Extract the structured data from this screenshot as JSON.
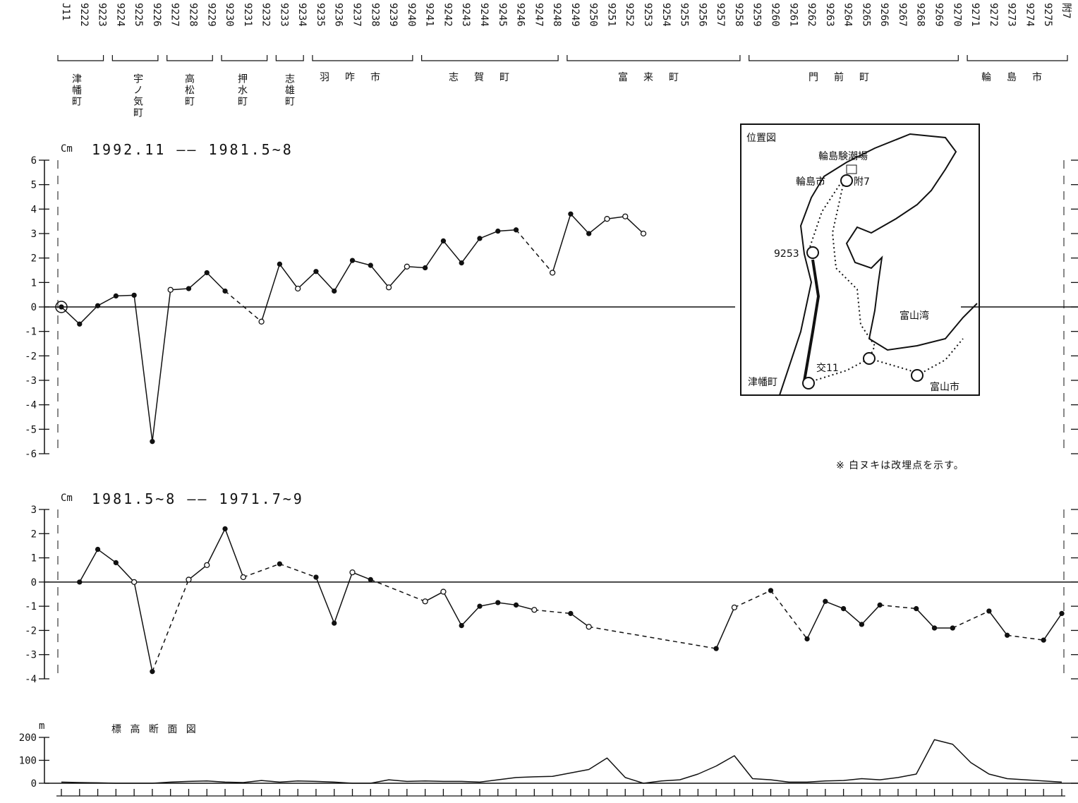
{
  "categories": [
    "J11",
    "9222",
    "9223",
    "9224",
    "9225",
    "9226",
    "9227",
    "9228",
    "9229",
    "9230",
    "9231",
    "9232",
    "9233",
    "9234",
    "9235",
    "9236",
    "9237",
    "9238",
    "9239",
    "9240",
    "9241",
    "9242",
    "9243",
    "9244",
    "9245",
    "9246",
    "9247",
    "9248",
    "9249",
    "9250",
    "9251",
    "9252",
    "9253",
    "9254",
    "9255",
    "9256",
    "9257",
    "9258",
    "9259",
    "9260",
    "9261",
    "9262",
    "9263",
    "9264",
    "9265",
    "9266",
    "9267",
    "9268",
    "9269",
    "9270",
    "9271",
    "9272",
    "9273",
    "9274",
    "9275",
    "附7"
  ],
  "municipalities": [
    "津幡町",
    "宇ノ気町",
    "高松町",
    "押水町",
    "志雄町",
    "羽咋市",
    "志賀町",
    "富来町",
    "門前町",
    "輪島市"
  ],
  "chart_data": [
    {
      "type": "line",
      "title": "1992.11 —— 1981.5~8",
      "y_unit": "Cm",
      "color": "#111",
      "values": [
        0,
        -0.7,
        0.05,
        0.45,
        0.48,
        -5.5,
        0.7,
        0.75,
        1.4,
        0.65,
        null,
        -0.6,
        1.75,
        0.75,
        1.45,
        0.65,
        1.9,
        1.7,
        0.8,
        1.65,
        1.6,
        2.7,
        1.8,
        2.8,
        3.1,
        3.15,
        null,
        1.4,
        3.8,
        3.0,
        3.6,
        3.7,
        3.0,
        null,
        null,
        null,
        null,
        null,
        null,
        null,
        null,
        null,
        null,
        null,
        null,
        null,
        null,
        null,
        null,
        null,
        null,
        null,
        null,
        null,
        null,
        null
      ],
      "open": [
        false,
        false,
        false,
        false,
        false,
        false,
        true,
        false,
        false,
        false,
        false,
        true,
        false,
        true,
        false,
        false,
        false,
        false,
        true,
        true,
        false,
        false,
        false,
        false,
        false,
        false,
        false,
        true,
        false,
        false,
        true,
        true,
        true,
        false,
        false,
        false,
        false,
        false,
        false,
        false,
        false,
        false,
        false,
        false,
        false,
        false,
        false,
        false,
        false,
        false,
        false,
        false,
        false,
        false,
        false,
        false
      ],
      "ylim": [
        -6,
        6
      ],
      "yticks": [
        -6,
        -5,
        -4,
        -3,
        -2,
        -1,
        0,
        1,
        2,
        3,
        4,
        5,
        6
      ]
    },
    {
      "type": "line",
      "title": "1981.5~8 —— 1971.7~9",
      "y_unit": "Cm",
      "color": "#111",
      "values": [
        null,
        0,
        1.35,
        0.8,
        0,
        -3.7,
        null,
        0.1,
        0.7,
        2.2,
        0.2,
        null,
        0.75,
        null,
        0.2,
        -1.7,
        0.4,
        0.1,
        null,
        null,
        -0.8,
        -0.4,
        -1.8,
        -1.0,
        -0.85,
        -0.95,
        -1.15,
        null,
        -1.3,
        -1.85,
        null,
        null,
        null,
        null,
        null,
        null,
        -2.75,
        -1.05,
        null,
        -0.35,
        null,
        -2.35,
        -0.8,
        -1.1,
        -1.75,
        -0.95,
        null,
        -1.1,
        -1.9,
        -1.9,
        null,
        -1.2,
        -2.2,
        null,
        -2.4,
        -1.3
      ],
      "open": [
        false,
        false,
        false,
        false,
        true,
        false,
        false,
        true,
        true,
        false,
        true,
        false,
        false,
        false,
        false,
        false,
        true,
        false,
        false,
        false,
        true,
        true,
        false,
        false,
        false,
        false,
        true,
        false,
        false,
        true,
        false,
        false,
        false,
        false,
        false,
        false,
        false,
        true,
        false,
        false,
        false,
        false,
        false,
        false,
        false,
        false,
        false,
        false,
        false,
        false,
        false,
        false,
        false,
        false,
        false,
        false
      ],
      "ylim": [
        -4,
        3
      ],
      "yticks": [
        -4,
        -3,
        -2,
        -1,
        0,
        1,
        2,
        3
      ]
    },
    {
      "type": "profile",
      "title": "標 高 断 面 図",
      "y_unit": "m",
      "color": "#111",
      "values": [
        5,
        3,
        2,
        0,
        0,
        0,
        5,
        8,
        10,
        5,
        3,
        12,
        5,
        10,
        8,
        5,
        0,
        0,
        15,
        8,
        10,
        8,
        8,
        5,
        15,
        25,
        28,
        30,
        45,
        60,
        110,
        25,
        0,
        10,
        15,
        40,
        75,
        120,
        20,
        15,
        5,
        5,
        10,
        12,
        20,
        15,
        25,
        40,
        190,
        170,
        90,
        40,
        20,
        15,
        10,
        5
      ],
      "ylim": [
        0,
        200
      ],
      "yticks": [
        0,
        100,
        200
      ]
    }
  ],
  "inset_map": {
    "title": "位置図",
    "labels": [
      "輪島験潮場",
      "輪島市",
      "附7",
      "9253",
      "富山湾",
      "交11",
      "津幡町",
      "富山市"
    ]
  },
  "note": "※ 白ヌキは改埋点を示す。"
}
